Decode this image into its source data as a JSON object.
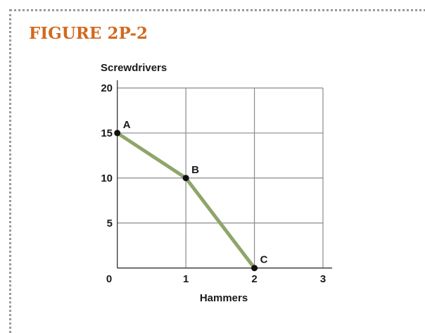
{
  "figure_title": "FIGURE 2P-2",
  "chart_data": {
    "type": "line",
    "title": "",
    "xlabel": "Hammers",
    "ylabel": "Screwdrivers",
    "xlim": [
      0,
      3
    ],
    "ylim": [
      0,
      20
    ],
    "x_ticks": [
      "0",
      "1",
      "2",
      "3"
    ],
    "y_ticks": [
      "5",
      "10",
      "15",
      "20"
    ],
    "grid": true,
    "series": [
      {
        "color": "#8fa56a",
        "points": [
          {
            "label": "A",
            "x": 0,
            "y": 15
          },
          {
            "label": "B",
            "x": 1,
            "y": 10
          },
          {
            "label": "C",
            "x": 2,
            "y": 0
          }
        ]
      }
    ]
  }
}
